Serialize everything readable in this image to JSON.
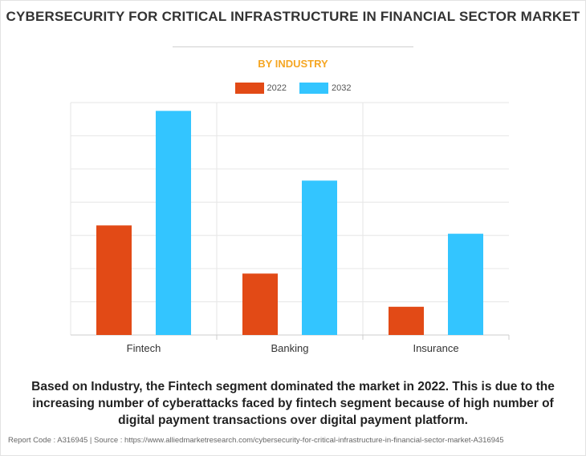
{
  "title": "CYBERSECURITY FOR CRITICAL INFRASTRUCTURE IN FINANCIAL SECTOR MARKET",
  "subtitle": "BY INDUSTRY",
  "colors": {
    "series_2022": "#e24a16",
    "series_2032": "#33c5ff",
    "subtitle": "#f5a623",
    "grid": "#e6e6e6"
  },
  "chart_data": {
    "type": "bar",
    "title": "CYBERSECURITY FOR CRITICAL INFRASTRUCTURE IN FINANCIAL SECTOR MARKET",
    "subtitle": "BY INDUSTRY",
    "categories": [
      "Fintech",
      "Banking",
      "Insurance"
    ],
    "series": [
      {
        "name": "2022",
        "color": "#e24a16",
        "values": [
          3.3,
          1.85,
          0.85
        ]
      },
      {
        "name": "2032",
        "color": "#33c5ff",
        "values": [
          6.75,
          4.65,
          3.05
        ]
      }
    ],
    "ylim": [
      0,
      7
    ],
    "y_gridlines": [
      0,
      1,
      2,
      3,
      4,
      5,
      6,
      7
    ],
    "xlabel": "",
    "ylabel": "",
    "grid": true,
    "legend": "top-center"
  },
  "caption": "Based on Industry, the Fintech segment dominated the market in 2022. This is due to the increasing number of cyberattacks faced by fintech segment because of high number of digital payment transactions over digital payment platform.",
  "footer": "Report Code : A316945  |  Source : https://www.alliedmarketresearch.com/cybersecurity-for-critical-infrastructure-in-financial-sector-market-A316945"
}
